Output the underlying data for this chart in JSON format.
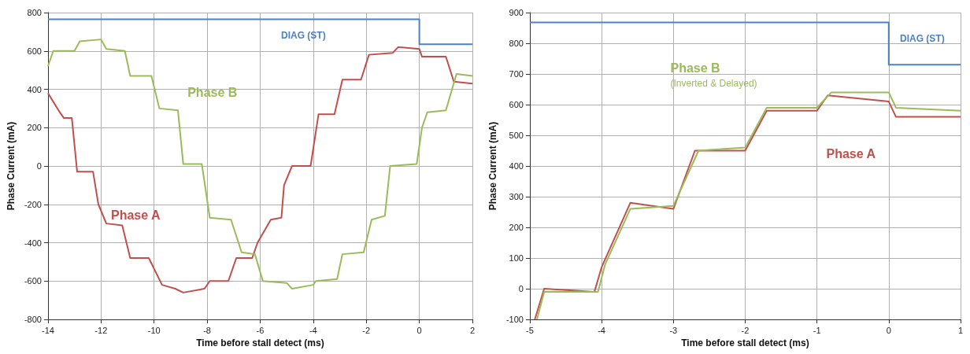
{
  "chart_data": [
    {
      "type": "line",
      "xlabel": "Time before stall detect (ms)",
      "ylabel": "Phase Current (mA)",
      "xlim": [
        -14,
        2
      ],
      "xticks": [
        -14,
        -12,
        -10,
        -8,
        -6,
        -4,
        -2,
        0,
        2
      ],
      "ylim": [
        -800,
        800
      ],
      "yticks": [
        -800,
        -600,
        -400,
        -200,
        0,
        200,
        400,
        600,
        800
      ],
      "grid": true,
      "legend": false,
      "marker": "none",
      "line_style": "solid",
      "series": [
        {
          "name": "DIAG (ST)",
          "color": "#4f81bd",
          "x": [
            -14,
            0,
            0,
            2
          ],
          "values": [
            765,
            765,
            635,
            635
          ]
        },
        {
          "name": "Phase A",
          "color": "#c0504d",
          "x": [
            -14,
            -13.6,
            -13.4,
            -13.1,
            -12.9,
            -12.3,
            -12.1,
            -11.8,
            -11.2,
            -10.9,
            -10.2,
            -9.7,
            -9.2,
            -8.9,
            -8.1,
            -7.9,
            -7.2,
            -6.9,
            -6.3,
            -6.1,
            -5.6,
            -5.2,
            -5.1,
            -4.8,
            -4.1,
            -3.8,
            -3.2,
            -2.9,
            -2.2,
            -1.9,
            -1,
            -0.8,
            0,
            0.1,
            1,
            1.3,
            2
          ],
          "values": [
            380,
            290,
            250,
            250,
            -30,
            -30,
            -200,
            -300,
            -310,
            -480,
            -480,
            -620,
            -640,
            -660,
            -640,
            -600,
            -600,
            -480,
            -480,
            -400,
            -280,
            -270,
            -100,
            0,
            0,
            270,
            270,
            450,
            450,
            580,
            590,
            620,
            610,
            570,
            570,
            440,
            430
          ]
        },
        {
          "name": "Phase B",
          "color": "#9bbb59",
          "x": [
            -14,
            -13.8,
            -13,
            -12.8,
            -12,
            -11.8,
            -11.1,
            -10.9,
            -10.1,
            -9.8,
            -9.1,
            -8.9,
            -8.2,
            -7.9,
            -7.1,
            -6.7,
            -6.2,
            -5.9,
            -5,
            -4.8,
            -4,
            -3.9,
            -3.1,
            -2.9,
            -2.1,
            -1.8,
            -1.3,
            -1.1,
            -0.1,
            0.1,
            0.3,
            1,
            1.4,
            2
          ],
          "values": [
            520,
            600,
            600,
            650,
            660,
            610,
            600,
            470,
            470,
            300,
            290,
            10,
            10,
            -270,
            -280,
            -450,
            -460,
            -600,
            -610,
            -640,
            -620,
            -600,
            -590,
            -460,
            -450,
            -280,
            -260,
            0,
            10,
            200,
            280,
            290,
            480,
            470
          ]
        }
      ]
    },
    {
      "type": "line",
      "xlabel": "Time before stall detect (ms)",
      "ylabel": "Phase Current (mA)",
      "xlim": [
        -5,
        1
      ],
      "xticks": [
        -5,
        -4,
        -3,
        -2,
        -1,
        0,
        1
      ],
      "ylim": [
        -100,
        900
      ],
      "yticks": [
        -100,
        0,
        100,
        200,
        300,
        400,
        500,
        600,
        700,
        800,
        900
      ],
      "grid": true,
      "legend": false,
      "marker": "none",
      "line_style": "solid",
      "annotations": [
        "(Inverted & Delayed)"
      ],
      "series": [
        {
          "name": "DIAG (ST)",
          "color": "#4f81bd",
          "x": [
            -5,
            0,
            0,
            1
          ],
          "values": [
            868,
            868,
            730,
            730
          ]
        },
        {
          "name": "Phase A",
          "color": "#c0504d",
          "x": [
            -4.93,
            -4.8,
            -4.1,
            -4,
            -3.6,
            -3,
            -2.7,
            -2,
            -1.7,
            -1,
            -0.85,
            0,
            0.1,
            1
          ],
          "values": [
            -100,
            0,
            -10,
            70,
            280,
            260,
            450,
            450,
            580,
            580,
            630,
            610,
            560,
            560
          ]
        },
        {
          "name": "Phase B",
          "color": "#9bbb59",
          "x": [
            -4.9,
            -4.8,
            -4.05,
            -3.95,
            -3.6,
            -3,
            -2.65,
            -2,
            -1.7,
            -1,
            -0.8,
            0,
            0.1,
            1
          ],
          "values": [
            -100,
            -10,
            -10,
            80,
            260,
            270,
            450,
            460,
            590,
            590,
            640,
            640,
            590,
            580
          ]
        }
      ]
    }
  ]
}
